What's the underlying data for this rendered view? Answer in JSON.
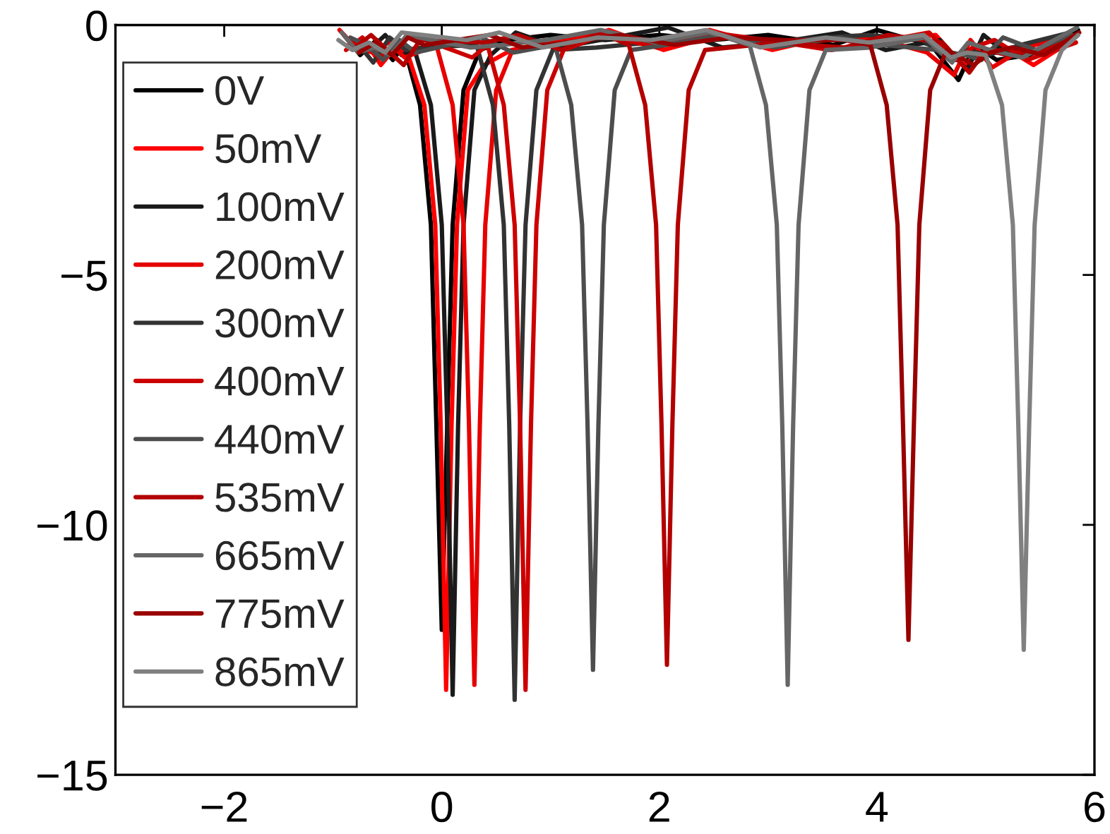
{
  "chart_data": {
    "type": "line",
    "xlim": [
      -3,
      6
    ],
    "ylim": [
      -15,
      0
    ],
    "xticks": [
      {
        "value": -2,
        "label": "−2"
      },
      0,
      2,
      4,
      6
    ],
    "yticks": [
      {
        "value": -15,
        "label": "−15"
      },
      {
        "value": -10,
        "label": "−10"
      },
      {
        "value": -5,
        "label": "−5"
      },
      0
    ],
    "legend": "top left",
    "grid": false,
    "marker": "none",
    "line_style": "solid",
    "series": [
      {
        "name": "0V",
        "color": "#000000",
        "x": [
          -0.9,
          -0.75,
          -0.6,
          -0.45,
          -0.35,
          -0.2,
          -0.1,
          -0.05,
          0.0,
          0.05,
          0.1,
          0.2,
          0.35,
          0.6,
          1.0,
          1.5,
          2.0,
          2.5,
          3.0,
          3.6,
          4.0,
          4.5,
          4.75,
          4.9,
          5.1,
          5.4,
          5.85
        ],
        "values": [
          -0.2,
          -0.6,
          -0.3,
          -0.7,
          -0.4,
          -1.6,
          -4.0,
          -8.0,
          -12.1,
          -8.0,
          -4.0,
          -1.3,
          -0.5,
          -0.3,
          -0.2,
          -0.3,
          -0.2,
          -0.3,
          -0.2,
          -0.4,
          -0.1,
          -0.4,
          -1.1,
          -0.4,
          -0.7,
          -0.6,
          -0.1
        ]
      },
      {
        "name": "50mV",
        "color": "#ff0000",
        "x": [
          -0.86,
          -0.71,
          -0.56,
          -0.41,
          -0.31,
          -0.16,
          -0.06,
          -0.01,
          0.04,
          0.09,
          0.14,
          0.24,
          0.39,
          0.64,
          1.04,
          1.54,
          2.04,
          2.54,
          3.04,
          3.64,
          4.04,
          4.54,
          4.79,
          4.94,
          5.14,
          5.44,
          5.8
        ],
        "values": [
          -0.4,
          -0.3,
          -0.8,
          -0.4,
          -0.6,
          -1.6,
          -4.0,
          -8.0,
          -13.3,
          -8.0,
          -4.0,
          -1.3,
          -0.8,
          -0.5,
          -0.4,
          -0.1,
          -0.5,
          -0.2,
          -0.5,
          -0.2,
          -0.3,
          -0.2,
          -0.8,
          -0.6,
          -0.4,
          -0.8,
          -0.3
        ]
      },
      {
        "name": "100mV",
        "color": "#1a1a1a",
        "x": [
          -0.82,
          -0.67,
          -0.52,
          -0.37,
          -0.25,
          -0.1,
          0.0,
          0.05,
          0.1,
          0.15,
          0.2,
          0.3,
          0.45,
          0.68,
          1.08,
          1.58,
          2.08,
          2.58,
          3.08,
          3.68,
          4.08,
          4.58,
          4.83,
          4.98,
          5.18,
          5.48,
          5.75
        ],
        "values": [
          -0.3,
          -0.5,
          -0.2,
          -0.6,
          -0.5,
          -1.6,
          -4.0,
          -8.0,
          -13.4,
          -8.0,
          -4.0,
          -1.3,
          -0.6,
          -0.15,
          -0.45,
          -0.25,
          -0.05,
          -0.45,
          -0.35,
          -0.15,
          -0.5,
          -0.3,
          -0.9,
          -0.2,
          -0.55,
          -0.35,
          -0.25
        ]
      },
      {
        "name": "200mV",
        "color": "#e60000",
        "x": [
          -0.94,
          -0.79,
          -0.64,
          -0.49,
          -0.34,
          -0.05,
          0.1,
          0.2,
          0.25,
          0.3,
          0.35,
          0.4,
          0.5,
          0.65,
          0.96,
          1.46,
          1.96,
          2.46,
          2.96,
          3.56,
          3.96,
          4.46,
          4.71,
          4.86,
          5.06,
          5.36,
          5.82
        ],
        "values": [
          -0.1,
          -0.45,
          -0.55,
          -0.35,
          -0.65,
          -0.4,
          -1.6,
          -4.0,
          -8.0,
          -13.2,
          -8.0,
          -4.0,
          -1.3,
          -0.5,
          -0.35,
          -0.15,
          -0.4,
          -0.1,
          -0.4,
          -0.3,
          -0.25,
          -0.55,
          -1.0,
          -0.3,
          -0.85,
          -0.45,
          -0.2
        ]
      },
      {
        "name": "300mV",
        "color": "#333333",
        "x": [
          -0.78,
          -0.63,
          -0.48,
          -0.33,
          -0.18,
          0.32,
          0.47,
          0.57,
          0.62,
          0.67,
          0.72,
          0.77,
          0.87,
          1.02,
          1.42,
          1.92,
          2.42,
          2.92,
          3.52,
          3.92,
          4.42,
          4.67,
          4.82,
          5.02,
          5.32,
          5.78
        ],
        "values": [
          -0.35,
          -0.75,
          -0.25,
          -0.5,
          -0.45,
          -0.4,
          -1.6,
          -4.0,
          -8.0,
          -13.5,
          -8.0,
          -4.0,
          -1.3,
          -0.5,
          -0.45,
          -0.35,
          -0.15,
          -0.35,
          -0.25,
          -0.2,
          -0.3,
          -0.7,
          -0.5,
          -0.6,
          -0.4,
          -0.15
        ]
      },
      {
        "name": "400mV",
        "color": "#cc0000",
        "x": [
          -0.88,
          -0.73,
          -0.58,
          -0.43,
          -0.28,
          0.28,
          0.42,
          0.57,
          0.67,
          0.72,
          0.77,
          0.82,
          0.87,
          0.97,
          1.12,
          1.48,
          1.98,
          2.48,
          2.98,
          3.58,
          3.98,
          4.48,
          4.73,
          4.88,
          5.08,
          5.38,
          5.83
        ],
        "values": [
          -0.5,
          -0.25,
          -0.65,
          -0.45,
          -0.2,
          -0.65,
          -0.4,
          -1.6,
          -4.0,
          -8.0,
          -13.3,
          -8.0,
          -4.0,
          -1.3,
          -0.5,
          -0.2,
          -0.45,
          -0.15,
          -0.3,
          -0.5,
          -0.35,
          -0.15,
          -0.7,
          -0.45,
          -0.3,
          -0.7,
          -0.35
        ]
      },
      {
        "name": "440mV",
        "color": "#4d4d4d",
        "x": [
          -0.84,
          -0.69,
          -0.54,
          -0.39,
          -0.24,
          0.36,
          0.66,
          1.04,
          1.19,
          1.29,
          1.34,
          1.39,
          1.44,
          1.49,
          1.59,
          1.74,
          2.06,
          2.56,
          3.06,
          3.66,
          4.06,
          4.56,
          4.81,
          4.96,
          5.16,
          5.46,
          5.79
        ],
        "values": [
          -0.25,
          -0.4,
          -0.7,
          -0.3,
          -0.55,
          -0.25,
          -0.55,
          -0.4,
          -1.6,
          -4.0,
          -8.0,
          -12.9,
          -8.0,
          -4.0,
          -1.3,
          -0.5,
          -0.4,
          -0.2,
          -0.45,
          -0.25,
          -0.4,
          -0.5,
          -0.6,
          -0.7,
          -0.25,
          -0.5,
          -0.2
        ]
      },
      {
        "name": "535mV",
        "color": "#b30000",
        "x": [
          -0.8,
          -0.65,
          -0.5,
          -0.35,
          -0.2,
          0.4,
          0.7,
          1.1,
          1.45,
          1.72,
          1.87,
          1.97,
          2.02,
          2.07,
          2.12,
          2.17,
          2.27,
          2.42,
          3.1,
          3.7,
          4.1,
          4.6,
          4.85,
          5.0,
          5.2,
          5.5,
          5.77
        ],
        "values": [
          -0.45,
          -0.2,
          -0.5,
          -0.8,
          -0.3,
          -0.35,
          -0.2,
          -0.5,
          -0.15,
          -0.4,
          -1.6,
          -4.0,
          -8.0,
          -12.8,
          -8.0,
          -4.0,
          -1.3,
          -0.5,
          -0.35,
          -0.45,
          -0.2,
          -0.35,
          -0.95,
          -0.5,
          -0.6,
          -0.55,
          -0.3
        ]
      },
      {
        "name": "665mV",
        "color": "#666666",
        "x": [
          -0.92,
          -0.77,
          -0.62,
          -0.47,
          -0.32,
          0.26,
          0.56,
          0.96,
          1.46,
          1.96,
          2.46,
          2.83,
          2.98,
          3.08,
          3.13,
          3.18,
          3.23,
          3.28,
          3.38,
          3.53,
          3.94,
          4.44,
          4.69,
          4.84,
          5.04,
          5.34,
          5.84
        ],
        "values": [
          -0.15,
          -0.55,
          -0.45,
          -0.6,
          -0.2,
          -0.45,
          -0.4,
          -0.3,
          -0.1,
          -0.35,
          -0.15,
          -0.4,
          -1.6,
          -4.0,
          -8.0,
          -13.2,
          -8.0,
          -4.0,
          -1.3,
          -0.5,
          -0.45,
          -0.25,
          -0.75,
          -0.35,
          -0.5,
          -0.65,
          -0.05
        ]
      },
      {
        "name": "775mV",
        "color": "#990000",
        "x": [
          -0.76,
          -0.61,
          -0.46,
          -0.31,
          -0.16,
          0.44,
          0.74,
          1.14,
          1.64,
          2.14,
          2.64,
          3.14,
          3.7,
          3.94,
          4.09,
          4.19,
          4.24,
          4.29,
          4.34,
          4.39,
          4.49,
          4.64,
          4.89,
          5.04,
          5.24,
          5.54,
          5.86
        ],
        "values": [
          -0.55,
          -0.35,
          -0.6,
          -0.25,
          -0.4,
          -0.2,
          -0.45,
          -0.35,
          -0.2,
          -0.4,
          -0.25,
          -0.3,
          -0.3,
          -0.4,
          -1.6,
          -4.0,
          -8.0,
          -12.3,
          -8.0,
          -4.0,
          -1.3,
          -0.5,
          -0.8,
          -0.55,
          -0.45,
          -0.6,
          -0.15
        ]
      },
      {
        "name": "865mV",
        "color": "#808080",
        "x": [
          -0.95,
          -0.82,
          -0.67,
          -0.52,
          -0.37,
          0.23,
          0.53,
          0.93,
          1.43,
          1.93,
          2.43,
          2.93,
          3.53,
          3.93,
          4.43,
          4.68,
          4.83,
          5.0,
          5.15,
          5.25,
          5.3,
          5.35,
          5.4,
          5.45,
          5.55,
          5.7,
          5.85
        ],
        "values": [
          -0.3,
          -0.5,
          -0.35,
          -0.55,
          -0.15,
          -0.3,
          -0.15,
          -0.45,
          -0.25,
          -0.3,
          -0.1,
          -0.45,
          -0.25,
          -0.35,
          -0.2,
          -0.65,
          -0.55,
          -0.6,
          -1.6,
          -4.0,
          -8.0,
          -12.5,
          -8.0,
          -4.0,
          -1.3,
          -0.5,
          -0.2
        ]
      }
    ]
  }
}
